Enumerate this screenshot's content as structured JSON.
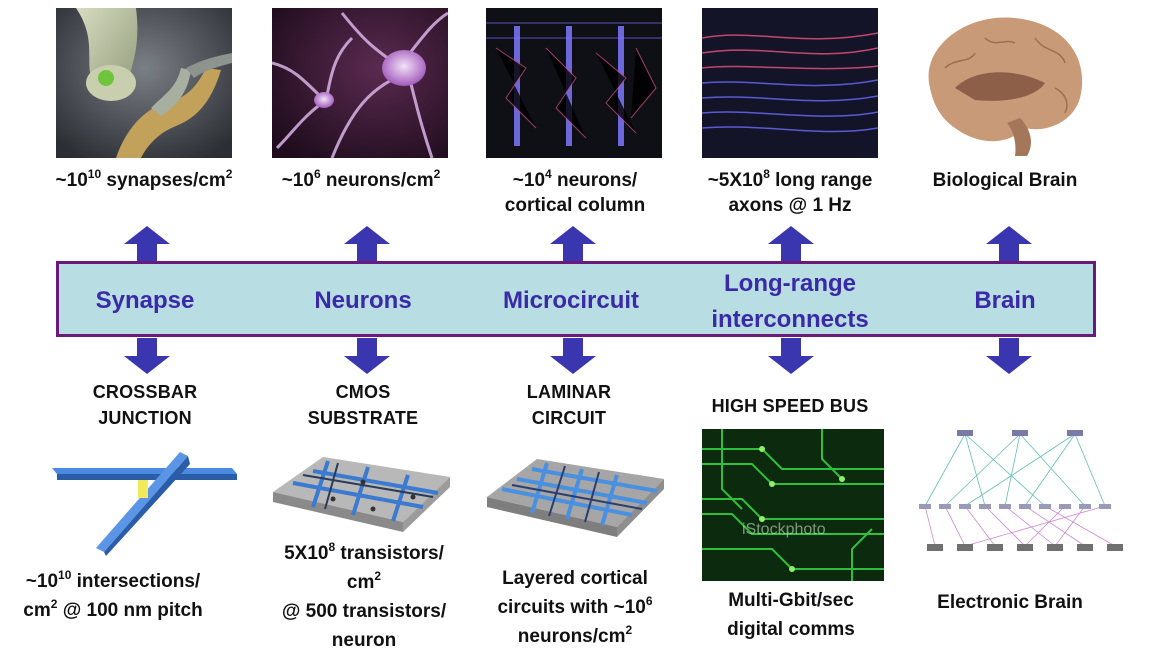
{
  "top_captions": {
    "synapses": {
      "pre": "~10",
      "exp": "10",
      "mid": " synapses/cm",
      "exp2": "2"
    },
    "neurons": {
      "pre": "~10",
      "exp": "6",
      "mid": " neurons/cm",
      "exp2": "2"
    },
    "column": {
      "line1_pre": "~10",
      "line1_exp": "4",
      "line1_post": " neurons/",
      "line2": "cortical column"
    },
    "axons": {
      "line1_pre": "~5X10",
      "line1_exp": "8",
      "line1_post": " long range",
      "line2": "axons @ 1 Hz"
    },
    "brain": "Biological Brain"
  },
  "band": {
    "labels": [
      "Synapse",
      "Neurons",
      "Microcircuit",
      "Long-range",
      "interconnects",
      "Brain"
    ]
  },
  "hardware": {
    "crossbar": [
      "CROSSBAR",
      "JUNCTION"
    ],
    "cmos": [
      "CMOS",
      "SUBSTRATE"
    ],
    "laminar": [
      "LAMINAR",
      "CIRCUIT"
    ],
    "bus": "HIGH SPEED BUS",
    "bus_watermark": "iStockphoto"
  },
  "bottom": {
    "crossbar": {
      "l1_pre": "~10",
      "l1_exp": "10",
      "l1_post": " intersections/",
      "l2_pre": "cm",
      "l2_exp": "2",
      "l2_post": " @ 100 nm pitch"
    },
    "cmos": {
      "l1_pre": "5X10",
      "l1_exp": "8",
      "l1_post": " transistors/",
      "l2_pre": "cm",
      "l2_exp": "2",
      "l3": "@ 500 transistors/",
      "l4": "neuron"
    },
    "laminar": {
      "l1": "Layered cortical",
      "l2_pre": "circuits with ~10",
      "l2_exp": "6",
      "l3_pre": "neurons/cm",
      "l3_exp": "2"
    },
    "bus": [
      "Multi-Gbit/sec",
      "digital comms"
    ],
    "brain": "Electronic Brain"
  },
  "colors": {
    "band_fill": "#b8dde3",
    "band_border": "#6a1a7a",
    "label": "#3b2aa8",
    "arrow": "#3a36b0"
  }
}
